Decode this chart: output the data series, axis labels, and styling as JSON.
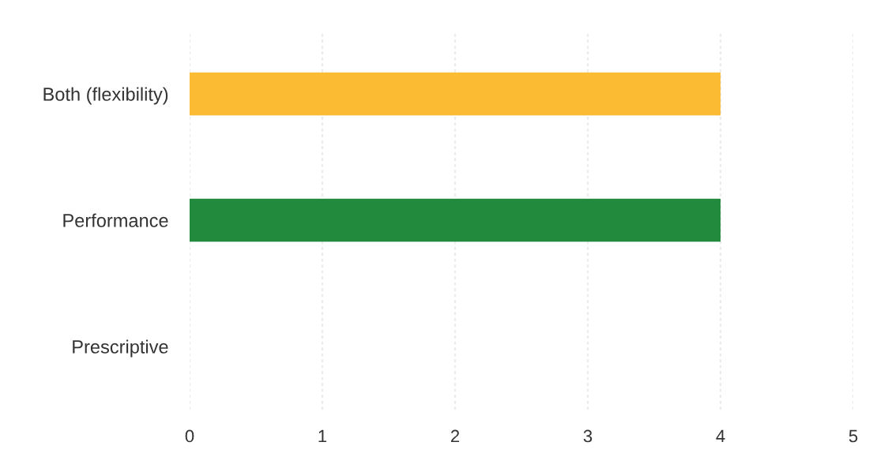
{
  "chart_data": {
    "type": "bar",
    "orientation": "horizontal",
    "categories": [
      "Both (flexibility)",
      "Performance",
      "Prescriptive"
    ],
    "values": [
      4,
      4,
      0
    ],
    "colors": [
      "#fbbc33",
      "#228a3c",
      null
    ],
    "xlim": [
      0,
      5
    ],
    "xticks": [
      0,
      1,
      2,
      3,
      4,
      5
    ],
    "grid": "x",
    "legend": false
  }
}
